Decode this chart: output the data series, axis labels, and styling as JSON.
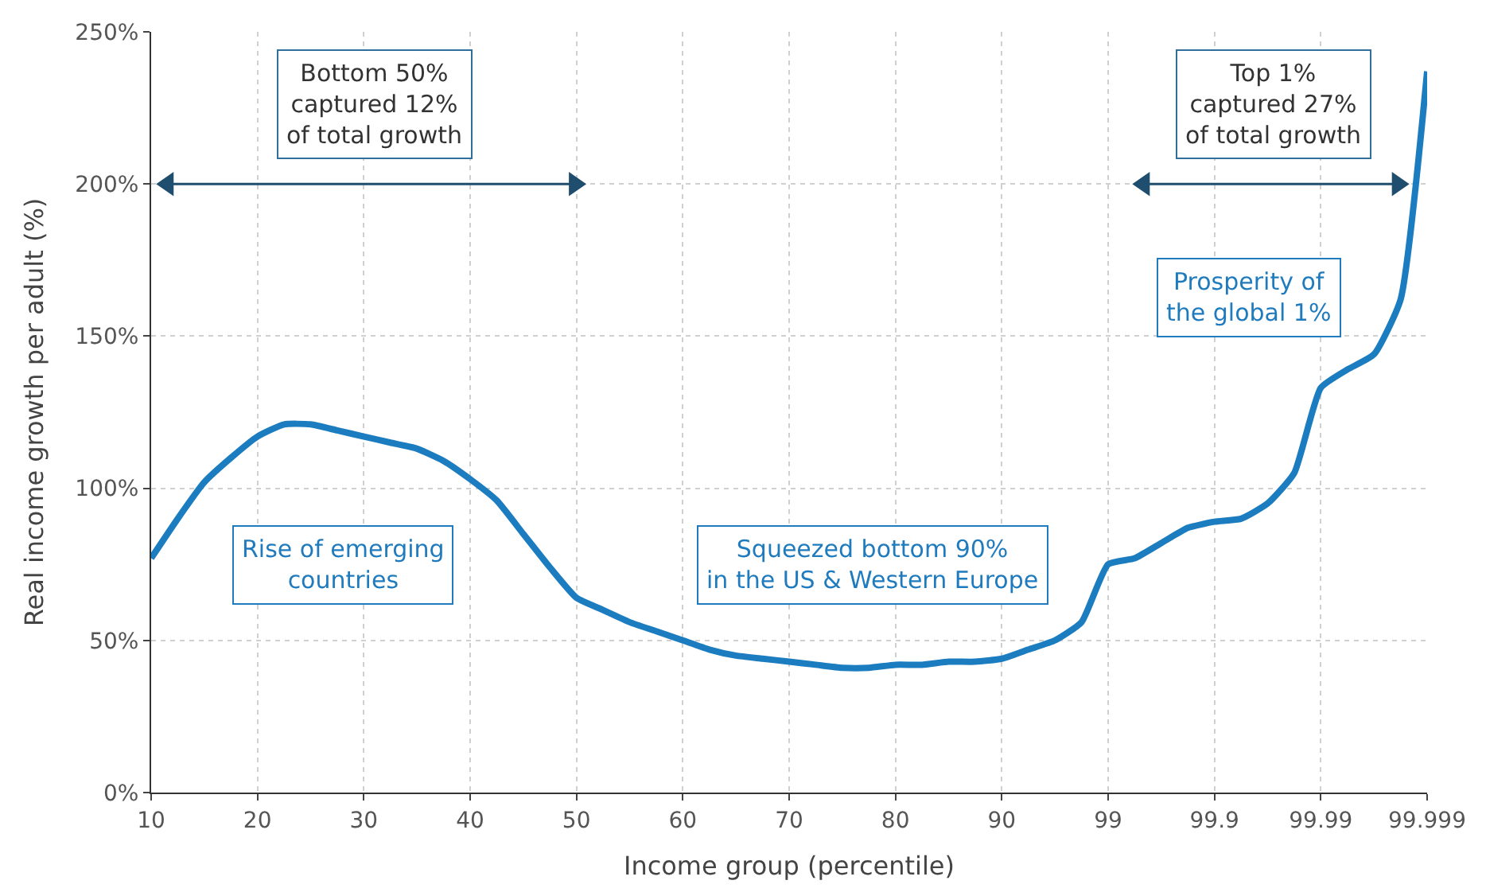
{
  "chart_data": {
    "type": "line",
    "xlabel": "Income group (percentile)",
    "ylabel": "Real income growth per adult (%)",
    "categories": [
      "10",
      null,
      null,
      null,
      "20",
      null,
      null,
      null,
      "30",
      null,
      null,
      null,
      "40",
      null,
      null,
      null,
      "50",
      null,
      null,
      null,
      "60",
      null,
      null,
      null,
      "70",
      null,
      null,
      null,
      "80",
      null,
      null,
      null,
      "90",
      null,
      null,
      null,
      "99",
      null,
      null,
      null,
      "99.9",
      null,
      null,
      null,
      "99.99",
      null,
      null,
      null,
      "99.999"
    ],
    "series": [
      {
        "color": "#1c7cc0",
        "values": [
          77,
          90,
          102,
          110,
          117,
          121,
          121,
          119,
          117,
          115,
          113,
          109,
          103,
          96,
          85,
          74,
          64,
          60,
          56,
          53,
          50,
          47,
          45,
          44,
          43,
          42,
          41,
          41,
          42,
          42,
          43,
          43,
          44,
          47,
          50,
          56,
          75,
          77,
          82,
          87,
          89,
          90,
          95,
          105,
          133,
          139,
          144,
          162,
          237
        ]
      }
    ],
    "ylim": [
      0,
      250
    ],
    "yticks": [
      {
        "value": 0,
        "label": "0%"
      },
      {
        "value": 50,
        "label": "50%"
      },
      {
        "value": 100,
        "label": "100%"
      },
      {
        "value": 150,
        "label": "150%"
      },
      {
        "value": 200,
        "label": "200%"
      },
      {
        "value": 250,
        "label": "250%"
      }
    ],
    "grid": true,
    "legend": false,
    "marker": "none",
    "line_style": "solid",
    "annotations": [
      "Bottom 50%\ncaptured 12%\nof total growth",
      "Top 1%\ncaptured 27%\nof total growth",
      "Rise of emerging\ncountries",
      "Squeezed bottom 90%\nin the US & Western Europe",
      "Prosperity of\nthe global 1%"
    ]
  }
}
